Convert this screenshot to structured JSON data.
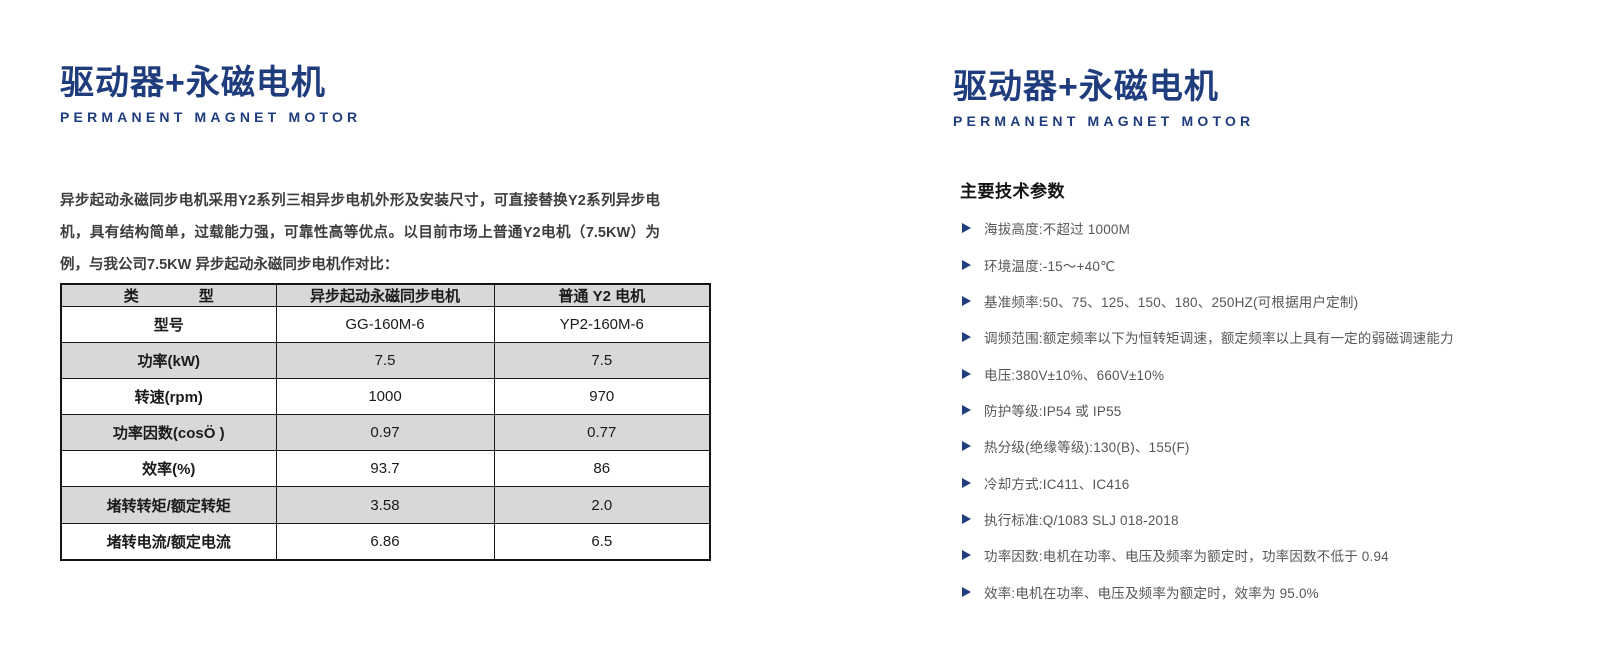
{
  "colors": {
    "brand_blue": "#1f3c7d",
    "table_row_gray": "#d8d8d8",
    "table_border": "#1a1a1a"
  },
  "left": {
    "title": "驱动器+永磁电机",
    "subtitle": "PERMANENT MAGNET MOTOR",
    "intro": "异步起动永磁同步电机采用Y2系列三相异步电机外形及安装尺寸，可直接替换Y2系列异步电机，具有结构简单，过载能力强，可靠性高等优点。以目前市场上普通Y2电机（7.5KW）为例，与我公司7.5KW 异步起动永磁同步电机作对比：",
    "table": {
      "headers": [
        "类　　　　型",
        "异步起动永磁同步电机",
        "普通 Y2 电机"
      ],
      "rows": [
        [
          "型号",
          "GG-160M-6",
          "YP2-160M-6"
        ],
        [
          "功率(kW)",
          "7.5",
          "7.5"
        ],
        [
          "转速(rpm)",
          "1000",
          "970"
        ],
        [
          "功率因数(cosÖ )",
          "0.97",
          "0.77"
        ],
        [
          "效率(%)",
          "93.7",
          "86"
        ],
        [
          "堵转转矩/额定转矩",
          "3.58",
          "2.0"
        ],
        [
          "堵转电流/额定电流",
          "6.86",
          "6.5"
        ]
      ]
    }
  },
  "right": {
    "title": "驱动器+永磁电机",
    "subtitle": "PERMANENT MAGNET MOTOR",
    "section_heading": "主要技术参数",
    "params": [
      "海拔高度:不超过 1000M",
      "环境温度:-15～+40℃",
      "基准频率:50、75、125、150、180、250HZ(可根据用户定制)",
      "调频范围:额定频率以下为恒转矩调速，额定频率以上具有一定的弱磁调速能力",
      "电压:380V±10%、660V±10%",
      "防护等级:IP54 或 IP55",
      "热分级(绝缘等级):130(B)、155(F)",
      "冷却方式:IC411、IC416",
      "执行标准:Q/1083 SLJ 018-2018",
      "功率因数:电机在功率、电压及频率为额定时，功率因数不低于 0.94",
      "效率:电机在功率、电压及频率为额定时，效率为 95.0%"
    ]
  }
}
